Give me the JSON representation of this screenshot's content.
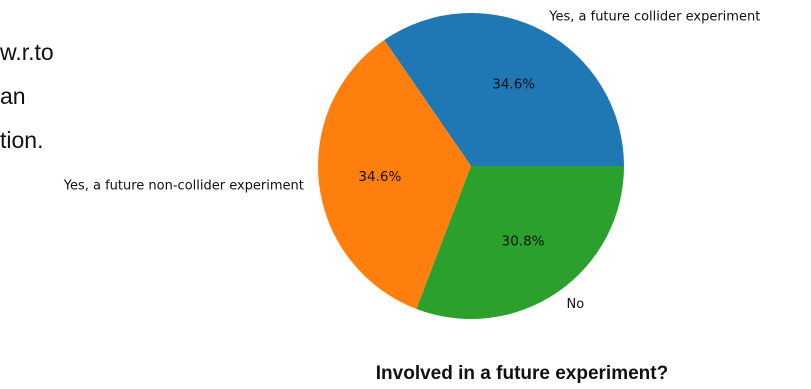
{
  "left_text": {
    "lines": [
      "w.r.to",
      "an",
      "tion."
    ]
  },
  "chart_data": {
    "type": "pie",
    "title": "Involved in a future experiment?",
    "categories": [
      "Yes, a future collider experiment",
      "Yes, a future non-collider experiment",
      "No"
    ],
    "values": [
      34.6,
      34.6,
      30.8
    ],
    "value_labels": [
      "34.6%",
      "34.6%",
      "30.8%"
    ],
    "colors": [
      "#1f77b4",
      "#ff7f0e",
      "#2ca02c"
    ],
    "start_angle_deg": 0,
    "direction": "counterclockwise"
  }
}
